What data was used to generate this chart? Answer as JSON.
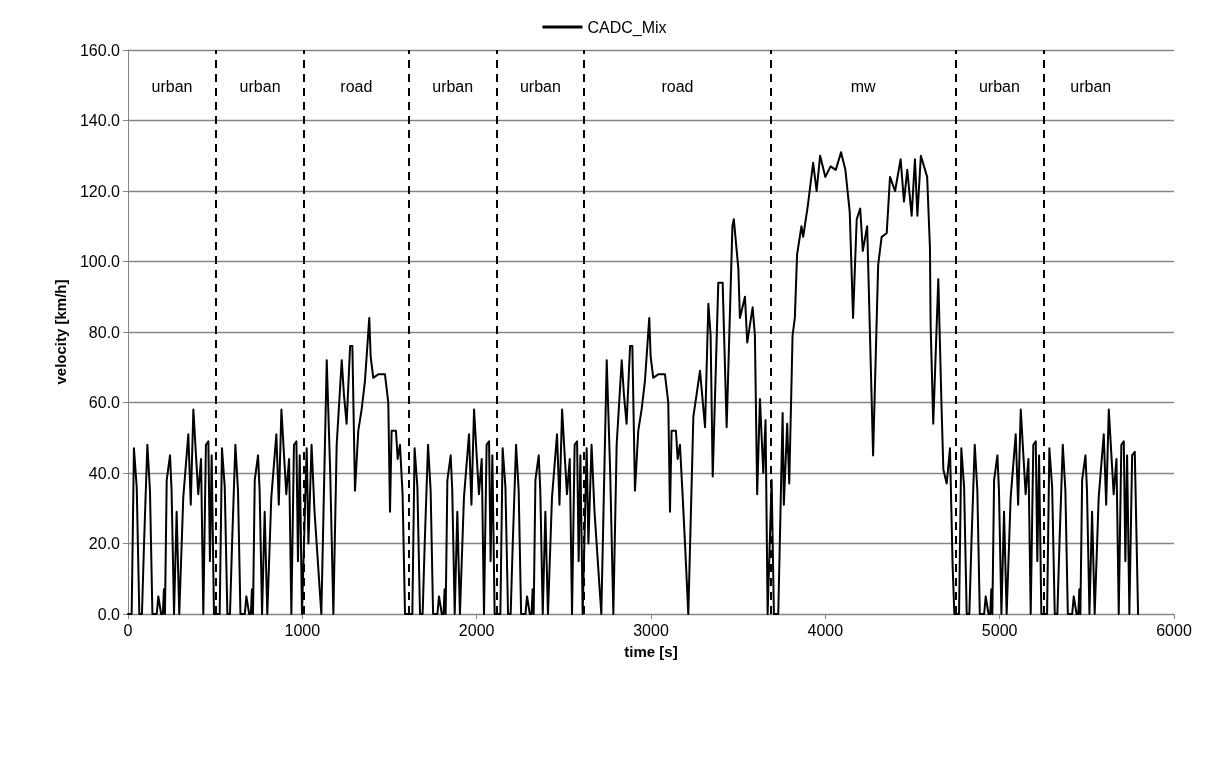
{
  "chart_data": {
    "type": "line",
    "xlabel": "time [s]",
    "ylabel": "velocity [km/h]",
    "xlim": [
      0,
      6000
    ],
    "xticks": [
      0,
      1000,
      2000,
      3000,
      4000,
      5000,
      6000
    ],
    "ylim": [
      0,
      160
    ],
    "yticks": [
      {
        "value": 0,
        "label": "0.0"
      },
      {
        "value": 20,
        "label": "20.0"
      },
      {
        "value": 40,
        "label": "40.0"
      },
      {
        "value": 60,
        "label": "60.0"
      },
      {
        "value": 80,
        "label": "80.0"
      },
      {
        "value": 100,
        "label": "100.0"
      },
      {
        "value": 120,
        "label": "120.0"
      },
      {
        "value": 140,
        "label": "140.0"
      },
      {
        "value": 160,
        "label": "160.0"
      }
    ],
    "grid": "y",
    "legend": "top",
    "marker": "none",
    "line_style": "solid",
    "series": [
      {
        "name": "CADC_Mix",
        "color": "#000000",
        "x": [
          0,
          21,
          34,
          50,
          65,
          80,
          92,
          111,
          126,
          140,
          165,
          174,
          190,
          200,
          206,
          212,
          222,
          241,
          250,
          264,
          279,
          294,
          317,
          346,
          360,
          375,
          390,
          403,
          419,
          432,
          447,
          461,
          470,
          480,
          493,
          505,
          526,
          539,
          555,
          570,
          585,
          597,
          616,
          631,
          645,
          670,
          679,
          695,
          705,
          711,
          717,
          727,
          746,
          755,
          769,
          784,
          799,
          822,
          851,
          865,
          880,
          895,
          908,
          924,
          937,
          952,
          966,
          975,
          985,
          998,
          1025,
          1035,
          1053,
          1070,
          1109,
          1140,
          1160,
          1178,
          1197,
          1226,
          1239,
          1254,
          1274,
          1287,
          1302,
          1321,
          1340,
          1359,
          1384,
          1392,
          1407,
          1436,
          1474,
          1493,
          1503,
          1512,
          1537,
          1547,
          1560,
          1575,
          1589,
          1610,
          1631,
          1644,
          1660,
          1675,
          1690,
          1702,
          1721,
          1736,
          1750,
          1775,
          1784,
          1800,
          1810,
          1816,
          1822,
          1832,
          1851,
          1860,
          1874,
          1889,
          1904,
          1927,
          1956,
          1970,
          1985,
          2000,
          2013,
          2029,
          2042,
          2057,
          2071,
          2080,
          2090,
          2103,
          2115,
          2136,
          2149,
          2165,
          2180,
          2195,
          2207,
          2226,
          2241,
          2255,
          2280,
          2289,
          2305,
          2315,
          2321,
          2327,
          2337,
          2356,
          2365,
          2379,
          2394,
          2409,
          2432,
          2461,
          2475,
          2490,
          2505,
          2518,
          2534,
          2547,
          2562,
          2576,
          2585,
          2595,
          2608,
          2631,
          2641,
          2659,
          2676,
          2715,
          2746,
          2766,
          2784,
          2803,
          2832,
          2845,
          2860,
          2880,
          2893,
          2908,
          2927,
          2946,
          2965,
          2990,
          2998,
          3013,
          3042,
          3080,
          3099,
          3109,
          3118,
          3143,
          3153,
          3166,
          3181,
          3195,
          3214,
          3243,
          3281,
          3310,
          3329,
          3342,
          3354,
          3386,
          3411,
          3434,
          3467,
          3475,
          3501,
          3510,
          3539,
          3552,
          3583,
          3596,
          3609,
          3625,
          3644,
          3657,
          3669,
          3692,
          3705,
          3730,
          3755,
          3762,
          3781,
          3793,
          3812,
          3825,
          3838,
          3863,
          3873,
          3900,
          3930,
          3950,
          3970,
          4000,
          4030,
          4060,
          4090,
          4115,
          4140,
          4159,
          4180,
          4200,
          4215,
          4240,
          4274,
          4303,
          4323,
          4352,
          4371,
          4400,
          4432,
          4451,
          4470,
          4495,
          4514,
          4528,
          4548,
          4584,
          4600,
          4604,
          4619,
          4648,
          4667,
          4677,
          4696,
          4715,
          4730,
          4740,
          4746,
          4767,
          4780,
          4796,
          4811,
          4826,
          4838,
          4857,
          4872,
          4886,
          4911,
          4920,
          4936,
          4946,
          4952,
          4958,
          4968,
          4987,
          4996,
          5010,
          5025,
          5040,
          5063,
          5092,
          5106,
          5121,
          5136,
          5149,
          5165,
          5178,
          5193,
          5207,
          5216,
          5226,
          5239,
          5251,
          5272,
          5285,
          5301,
          5316,
          5331,
          5343,
          5362,
          5377,
          5391,
          5416,
          5425,
          5441,
          5451,
          5457,
          5463,
          5473,
          5492,
          5501,
          5515,
          5530,
          5545,
          5568,
          5597,
          5611,
          5626,
          5641,
          5654,
          5670,
          5683,
          5698,
          5712,
          5721,
          5731,
          5744,
          5760,
          5775,
          5794
        ],
        "values": [
          0,
          0,
          47,
          36,
          0,
          0,
          20,
          48,
          35,
          0,
          0,
          5,
          0,
          0,
          7,
          0,
          38,
          45,
          35,
          0,
          29,
          0,
          33,
          51,
          31,
          58,
          45,
          34,
          44,
          0,
          48,
          49,
          15,
          45,
          0,
          0,
          0,
          47,
          36,
          0,
          0,
          20,
          48,
          35,
          0,
          0,
          5,
          0,
          0,
          7,
          0,
          38,
          45,
          35,
          0,
          29,
          0,
          33,
          51,
          31,
          58,
          45,
          34,
          44,
          0,
          48,
          49,
          15,
          45,
          0,
          47,
          20,
          48,
          29,
          0,
          72,
          40,
          0,
          48,
          72,
          62,
          54,
          76,
          76,
          35,
          52,
          58,
          66,
          84,
          73,
          67,
          68,
          68,
          60,
          29,
          52,
          52,
          44,
          48,
          34,
          0,
          0,
          0,
          47,
          36,
          0,
          0,
          20,
          48,
          35,
          0,
          0,
          5,
          0,
          0,
          7,
          0,
          38,
          45,
          35,
          0,
          29,
          0,
          33,
          51,
          31,
          58,
          45,
          34,
          44,
          0,
          48,
          49,
          15,
          45,
          0,
          0,
          0,
          47,
          36,
          0,
          0,
          20,
          48,
          35,
          0,
          0,
          5,
          0,
          0,
          7,
          0,
          38,
          45,
          35,
          0,
          29,
          0,
          33,
          51,
          31,
          58,
          45,
          34,
          44,
          0,
          48,
          49,
          15,
          45,
          0,
          47,
          20,
          48,
          29,
          0,
          72,
          40,
          0,
          48,
          72,
          62,
          54,
          76,
          76,
          35,
          52,
          58,
          66,
          84,
          73,
          67,
          68,
          68,
          60,
          29,
          52,
          52,
          44,
          48,
          34,
          20,
          0,
          56,
          69,
          53,
          88,
          79,
          39,
          94,
          94,
          53,
          110,
          112,
          98,
          84,
          90,
          77,
          87,
          79,
          34,
          61,
          40,
          55,
          0,
          38,
          0,
          0,
          57,
          31,
          54,
          37,
          79,
          84,
          102,
          110,
          107,
          116,
          128,
          120,
          130,
          124,
          127,
          126,
          131,
          126,
          114,
          84,
          112,
          115,
          103,
          110,
          45,
          99,
          107,
          108,
          124,
          120,
          129,
          117,
          126,
          113,
          129,
          113,
          130,
          124,
          104,
          82,
          54,
          95,
          58,
          41,
          37,
          47,
          14,
          0,
          0,
          0,
          47,
          36,
          0,
          0,
          20,
          48,
          35,
          0,
          0,
          5,
          0,
          0,
          7,
          0,
          38,
          45,
          35,
          0,
          29,
          0,
          33,
          51,
          31,
          58,
          45,
          34,
          44,
          0,
          48,
          49,
          15,
          45,
          0,
          0,
          0,
          47,
          36,
          0,
          0,
          20,
          48,
          35,
          0,
          0,
          5,
          0,
          0,
          7,
          0,
          38,
          45,
          35,
          0,
          29,
          0,
          33,
          51,
          31,
          58,
          45,
          34,
          44,
          0,
          48,
          49,
          15,
          45,
          0,
          45,
          46,
          0
        ]
      }
    ],
    "ref_lines": [
      {
        "axis": "x",
        "value": 505,
        "label": null,
        "color": "#000000",
        "line_style": "dashed"
      },
      {
        "axis": "x",
        "value": 1010,
        "label": null,
        "color": "#000000",
        "line_style": "dashed"
      },
      {
        "axis": "x",
        "value": 1610,
        "label": null,
        "color": "#000000",
        "line_style": "dashed"
      },
      {
        "axis": "x",
        "value": 2115,
        "label": null,
        "color": "#000000",
        "line_style": "dashed"
      },
      {
        "axis": "x",
        "value": 2616,
        "label": null,
        "color": "#000000",
        "line_style": "dashed"
      },
      {
        "axis": "x",
        "value": 3688,
        "label": null,
        "color": "#000000",
        "line_style": "dashed"
      },
      {
        "axis": "x",
        "value": 4746,
        "label": null,
        "color": "#000000",
        "line_style": "dashed"
      },
      {
        "axis": "x",
        "value": 5251,
        "label": null,
        "color": "#000000",
        "line_style": "dashed"
      }
    ],
    "annotations": [
      "urban",
      "urban",
      "road",
      "urban",
      "urban",
      "road",
      "mw",
      "urban",
      "urban"
    ]
  }
}
